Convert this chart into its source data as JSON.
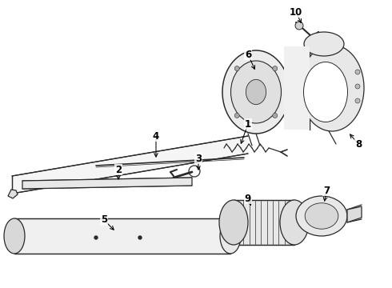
{
  "background_color": "#ffffff",
  "line_color": "#2a2a2a",
  "fig_width": 4.9,
  "fig_height": 3.6,
  "dpi": 100,
  "label_fontsize": 8.5
}
